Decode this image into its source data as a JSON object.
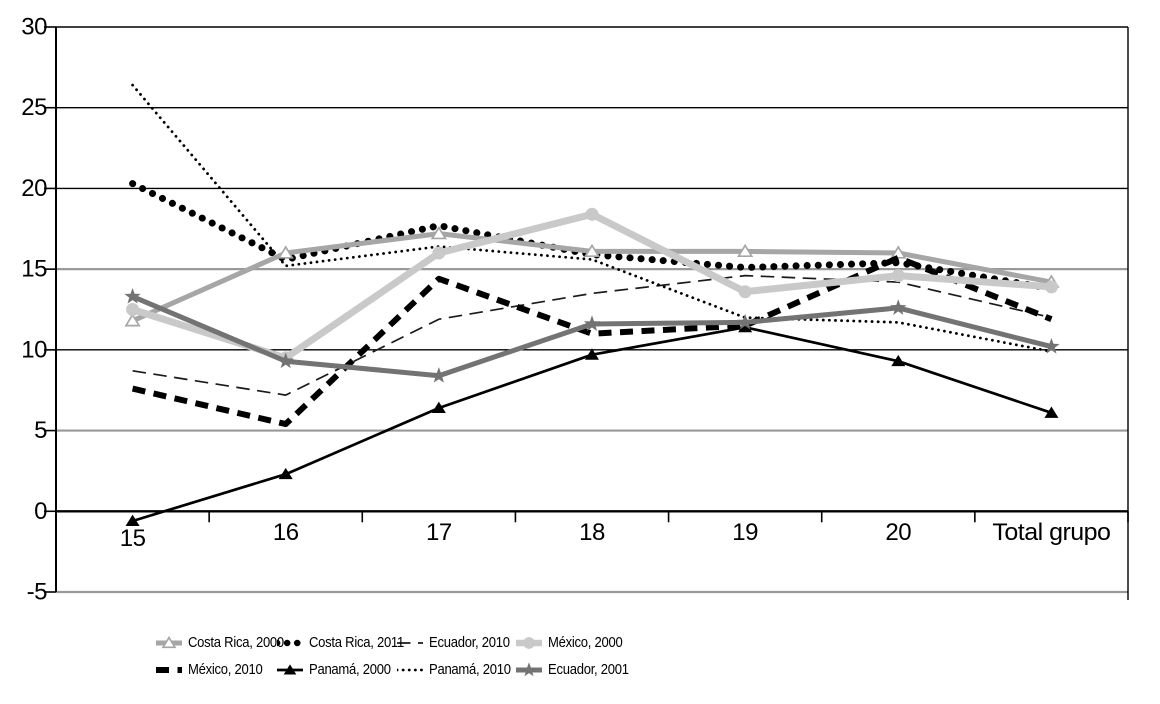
{
  "chart_data": {
    "type": "line",
    "categories": [
      "15",
      "16",
      "17",
      "18",
      "19",
      "20",
      "Total grupo"
    ],
    "ylim": [
      -5,
      30
    ],
    "yticks": [
      30,
      25,
      20,
      15,
      10,
      5,
      0,
      -5
    ],
    "gray_gridlines": [
      15,
      5,
      -5
    ],
    "grid": "horizontal",
    "legend_position": "bottom",
    "colors": {
      "axis": "#000000",
      "minor_grid_gray": "#999999",
      "text": "#000000",
      "background": "#ffffff"
    },
    "series": [
      {
        "name": "Costa Rica, 2000",
        "color": "#a6a6a6",
        "style": "solid-medium",
        "marker": "triangle-open",
        "values": [
          11.8,
          16.0,
          17.2,
          16.1,
          16.1,
          16.0,
          14.2
        ]
      },
      {
        "name": "Costa Rica, 2011",
        "color": "#000000",
        "style": "dot-heavy",
        "marker": "none",
        "values": [
          20.3,
          15.6,
          17.7,
          15.9,
          15.1,
          15.4,
          13.8
        ]
      },
      {
        "name": "Ecuador, 2010",
        "color": "#1a1a1a",
        "style": "dash-thin",
        "marker": "none",
        "values": [
          8.7,
          7.2,
          11.9,
          13.5,
          14.6,
          14.2,
          12.0
        ]
      },
      {
        "name": "México, 2000",
        "color": "#c9c9c9",
        "style": "solid-heavy",
        "marker": "circle",
        "values": [
          12.5,
          9.5,
          16.0,
          18.4,
          13.6,
          14.6,
          13.9
        ]
      },
      {
        "name": "México, 2010",
        "color": "#000000",
        "style": "dash-heavy",
        "marker": "none",
        "values": [
          7.6,
          5.4,
          14.4,
          11.0,
          11.5,
          15.7,
          11.9
        ]
      },
      {
        "name": "Panamá, 2000",
        "color": "#000000",
        "style": "solid-thin",
        "marker": "triangle",
        "values": [
          -0.6,
          2.3,
          6.4,
          9.7,
          11.4,
          9.3,
          6.1
        ]
      },
      {
        "name": "Panamá, 2010",
        "color": "#000000",
        "style": "dot-thin",
        "marker": "none",
        "values": [
          26.4,
          15.2,
          16.4,
          15.6,
          12.0,
          11.7,
          9.9
        ]
      },
      {
        "name": "Ecuador, 2001",
        "color": "#737373",
        "style": "solid-medium",
        "marker": "star",
        "values": [
          13.3,
          9.3,
          8.4,
          11.6,
          11.7,
          12.6,
          10.2
        ]
      }
    ],
    "legend_rows": [
      [
        0,
        1,
        2,
        3
      ],
      [
        4,
        5,
        6,
        7
      ]
    ]
  }
}
